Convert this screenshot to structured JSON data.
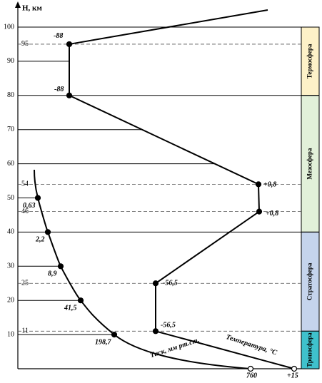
{
  "axis_label": "H, км",
  "yticks": [
    10,
    20,
    30,
    40,
    50,
    60,
    70,
    80,
    90,
    100
  ],
  "dashed_ticks": [
    95,
    54,
    46,
    25,
    11
  ],
  "temperature": {
    "label": "Температура, °C",
    "points": [
      {
        "altitude": 95,
        "label": "-88"
      },
      {
        "altitude": 80,
        "label": "-88"
      },
      {
        "altitude": 54,
        "label": "+0,8"
      },
      {
        "altitude": 46,
        "label": "+0,8"
      },
      {
        "altitude": 25,
        "label": "-56,5"
      },
      {
        "altitude": 11,
        "label": "-56,5"
      },
      {
        "altitude": 0,
        "label": "+15"
      }
    ]
  },
  "pressure": {
    "label": "Тиск, мм рт.ст.",
    "points": [
      {
        "altitude": 0,
        "label": "760"
      },
      {
        "altitude": 10,
        "label": "198,7"
      },
      {
        "altitude": 20,
        "label": "41,5"
      },
      {
        "altitude": 30,
        "label": "8,9"
      },
      {
        "altitude": 40,
        "label": "2,2"
      },
      {
        "altitude": 50,
        "label": "0,63"
      }
    ]
  },
  "layers": [
    {
      "name": "Термосфера",
      "from": 80,
      "to": 100,
      "color": "#fdf1c8"
    },
    {
      "name": "Мезосфера",
      "from": 40,
      "to": 80,
      "color": "#e2f0d9"
    },
    {
      "name": "Стратосфера",
      "from": 11,
      "to": 40,
      "color": "#c5d4ec"
    },
    {
      "name": "Тропосфера",
      "from": 0,
      "to": 11,
      "color": "#3fc1cc"
    }
  ]
}
